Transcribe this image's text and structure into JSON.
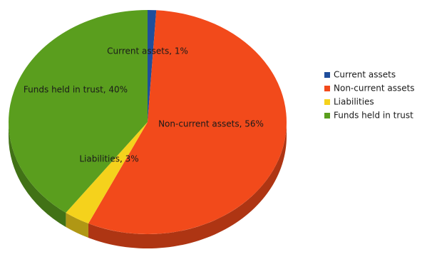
{
  "chart_data": {
    "type": "pie",
    "title": "",
    "is_3d": true,
    "legend_position": "right",
    "slices": [
      {
        "label": "Current assets",
        "value": 1,
        "data_label": "Current assets, 1%",
        "color": "#1f4e9c"
      },
      {
        "label": "Non-current assets",
        "value": 56,
        "data_label": "Non-current assets, 56%",
        "color": "#f24a1b"
      },
      {
        "label": "Liabilities",
        "value": 3,
        "data_label": "Liabilities, 3%",
        "color": "#f5d21c"
      },
      {
        "label": "Funds held in trust",
        "value": 40,
        "data_label": "Funds held in trust, 40%",
        "color": "#5a9e1e"
      }
    ]
  }
}
